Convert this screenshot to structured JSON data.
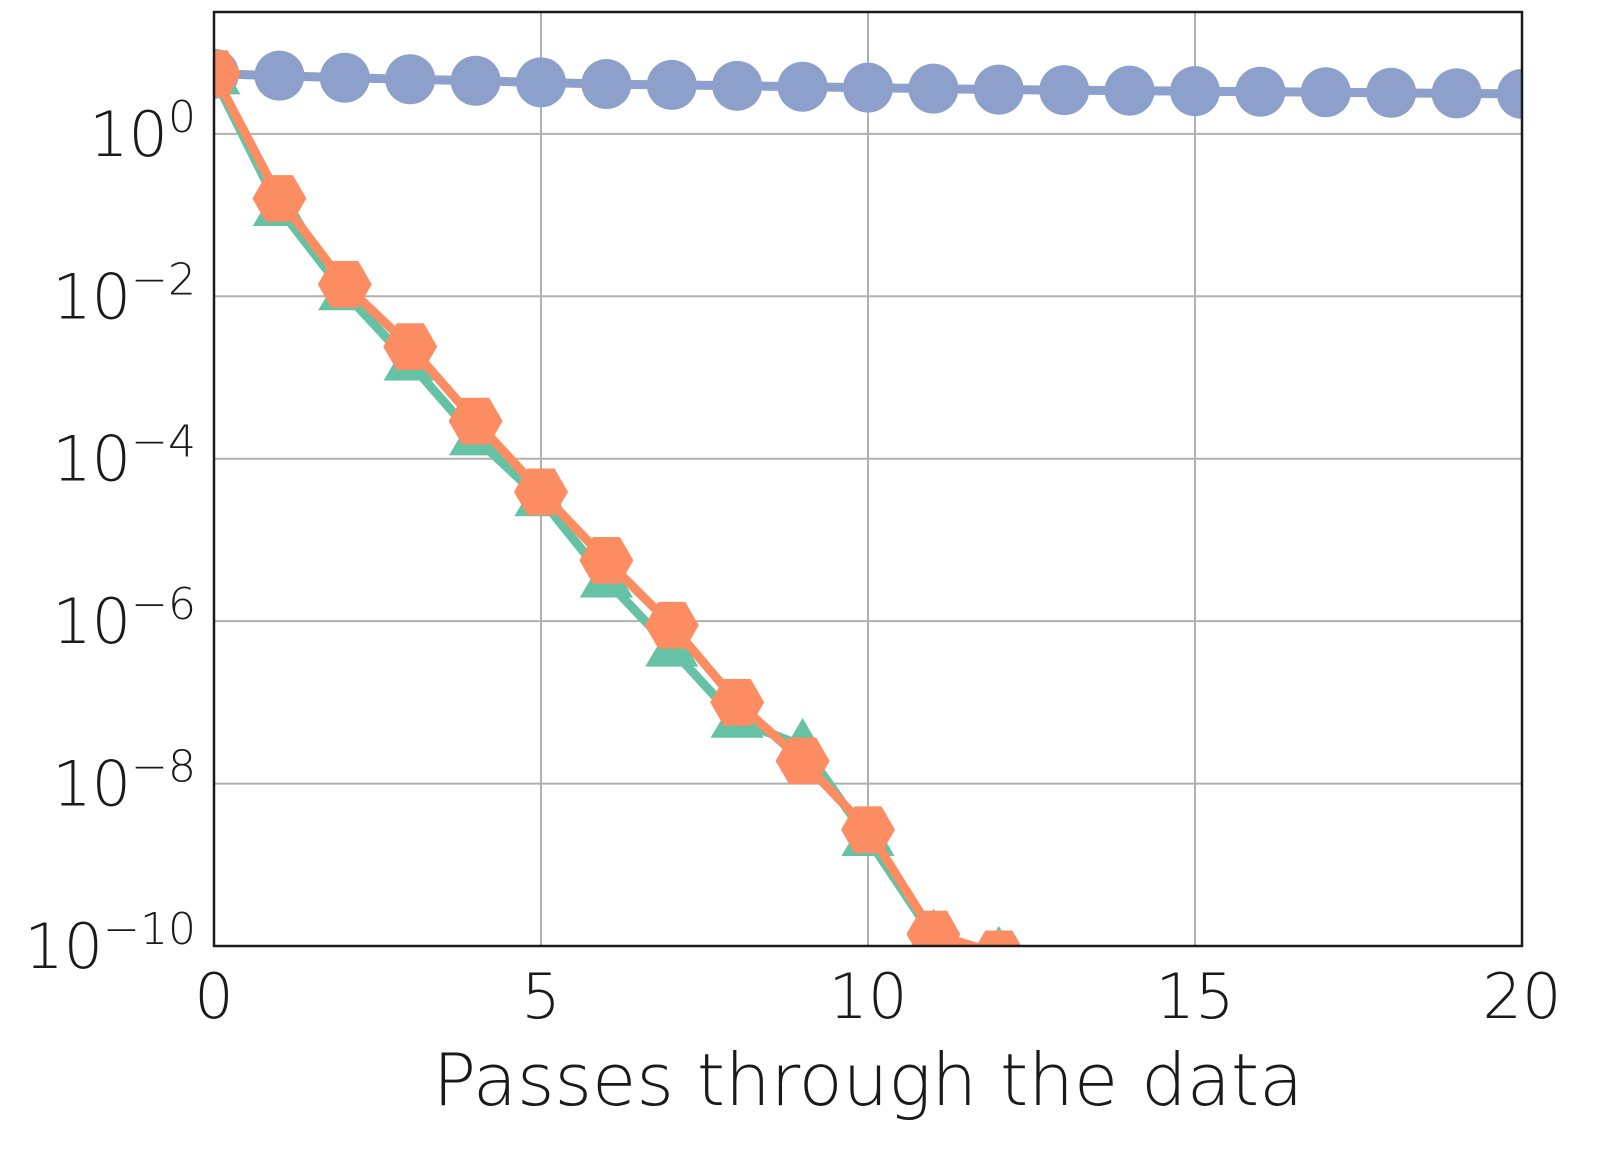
{
  "chart_data": {
    "type": "line",
    "xlabel": "Passes through the data",
    "ylabel": "",
    "xlim": [
      0,
      20
    ],
    "ylim_exponent": [
      -10,
      1.5
    ],
    "y_scale": "log",
    "grid": true,
    "x_ticks": [
      0,
      5,
      10,
      15,
      20
    ],
    "x_tick_labels": [
      "0",
      "5",
      "10",
      "15",
      "20"
    ],
    "y_ticks": [
      {
        "exponent": 0,
        "base": "10",
        "power": "0"
      },
      {
        "exponent": -2,
        "base": "10",
        "power": "−2"
      },
      {
        "exponent": -4,
        "base": "10",
        "power": "−4"
      },
      {
        "exponent": -6,
        "base": "10",
        "power": "−6"
      },
      {
        "exponent": -8,
        "base": "10",
        "power": "−8"
      },
      {
        "exponent": -10,
        "base": "10",
        "power": "−10"
      }
    ],
    "series": [
      {
        "marker": "circle",
        "color": "#8da0cb",
        "x": [
          0,
          1,
          2,
          3,
          4,
          5,
          6,
          7,
          8,
          9,
          10,
          11,
          12,
          13,
          14,
          15,
          16,
          17,
          18,
          19,
          20
        ],
        "y": [
          5.5,
          5.2,
          4.9,
          4.7,
          4.5,
          4.3,
          4.1,
          4.0,
          3.9,
          3.8,
          3.7,
          3.6,
          3.5,
          3.45,
          3.4,
          3.35,
          3.3,
          3.25,
          3.2,
          3.15,
          3.1
        ]
      },
      {
        "marker": "triangle",
        "color": "#66c2a5",
        "x": [
          0,
          1,
          2,
          3,
          4,
          5,
          6,
          7,
          8,
          9,
          10,
          11,
          12
        ],
        "y": [
          5.0,
          0.12,
          0.011,
          0.0015,
          0.00018,
          3.2e-05,
          3.2e-06,
          4.5e-07,
          6e-08,
          2.9e-08,
          2.1e-09,
          1.3e-10,
          8e-11
        ]
      },
      {
        "marker": "hexagon",
        "color": "#fc8d62",
        "x": [
          0,
          1,
          2,
          3,
          4,
          5,
          6,
          7,
          8,
          9,
          10,
          11,
          12
        ],
        "y": [
          5.5,
          0.16,
          0.014,
          0.0024,
          0.00029,
          3.9e-05,
          5.6e-06,
          8.9e-07,
          1e-07,
          1.9e-08,
          2.7e-09,
          1.4e-10,
          8e-11
        ]
      }
    ]
  }
}
